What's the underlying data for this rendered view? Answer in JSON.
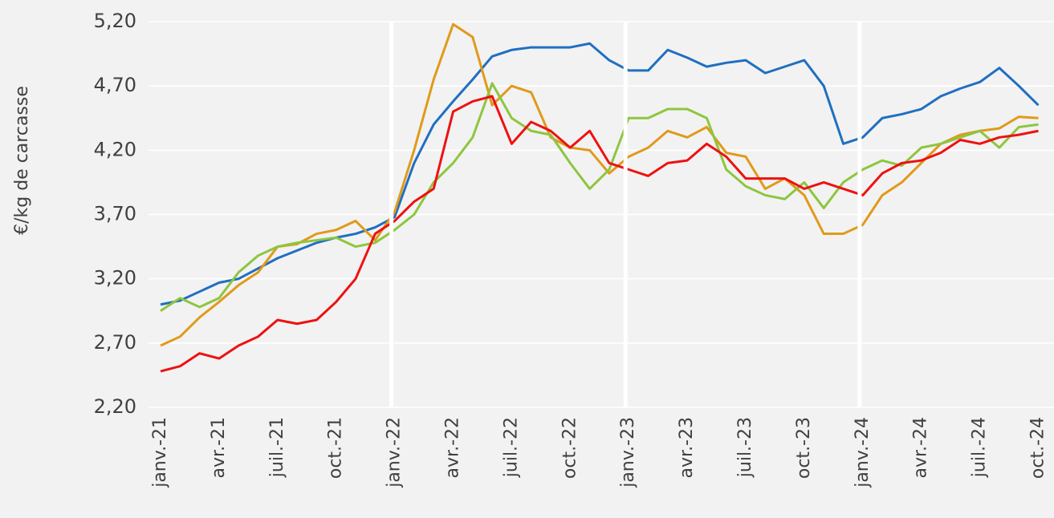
{
  "chart_data": {
    "type": "line",
    "y_label": "€/kg de carcasse",
    "categories": [
      "janv.-21",
      null,
      null,
      "avr.-21",
      null,
      null,
      "juil.-21",
      null,
      null,
      "oct.-21",
      null,
      null,
      "janv.-22",
      null,
      null,
      "avr.-22",
      null,
      null,
      "juil.-22",
      null,
      null,
      "oct.-22",
      null,
      null,
      "janv.-23",
      null,
      null,
      "avr.-23",
      null,
      null,
      "juil.-23",
      null,
      null,
      "oct.-23",
      null,
      null,
      "janv.-24",
      null,
      null,
      "avr.-24",
      null,
      null,
      "juil.-24",
      null,
      null,
      "oct.-24"
    ],
    "series": [
      {
        "color": "#1f6fc0",
        "values": [
          3.0,
          3.03,
          3.1,
          3.17,
          3.2,
          3.28,
          3.36,
          3.42,
          3.48,
          3.52,
          3.55,
          3.6,
          3.68,
          4.1,
          4.4,
          4.58,
          4.75,
          4.93,
          4.98,
          5.0,
          5.0,
          5.0,
          5.03,
          4.9,
          4.82,
          4.82,
          4.98,
          4.92,
          4.85,
          4.88,
          4.9,
          4.8,
          4.85,
          4.9,
          4.7,
          4.25,
          4.3,
          4.45,
          4.48,
          4.52,
          4.62,
          4.68,
          4.73,
          4.84,
          4.7,
          4.55
        ]
      },
      {
        "color": "#e09a1a",
        "values": [
          2.68,
          2.75,
          2.9,
          3.02,
          3.15,
          3.25,
          3.45,
          3.47,
          3.55,
          3.58,
          3.65,
          3.5,
          3.72,
          4.2,
          4.75,
          5.18,
          5.08,
          4.55,
          4.7,
          4.65,
          4.3,
          4.22,
          4.2,
          4.02,
          4.15,
          4.22,
          4.35,
          4.3,
          4.38,
          4.18,
          4.15,
          3.9,
          3.98,
          3.85,
          3.55,
          3.55,
          3.62,
          3.85,
          3.95,
          4.1,
          4.25,
          4.32,
          4.35,
          4.37,
          4.46,
          4.45
        ]
      },
      {
        "color": "#8dc63f",
        "values": [
          2.95,
          3.05,
          2.98,
          3.05,
          3.25,
          3.38,
          3.45,
          3.48,
          3.5,
          3.52,
          3.45,
          3.48,
          3.58,
          3.7,
          3.95,
          4.1,
          4.3,
          4.72,
          4.45,
          4.35,
          4.32,
          4.1,
          3.9,
          4.05,
          4.45,
          4.45,
          4.52,
          4.52,
          4.45,
          4.05,
          3.92,
          3.85,
          3.82,
          3.95,
          3.75,
          3.95,
          4.05,
          4.12,
          4.08,
          4.22,
          4.25,
          4.3,
          4.35,
          4.22,
          4.38,
          4.4
        ]
      },
      {
        "color": "#ee1111",
        "values": [
          2.48,
          2.52,
          2.62,
          2.58,
          2.68,
          2.75,
          2.88,
          2.85,
          2.88,
          3.02,
          3.2,
          3.55,
          3.65,
          3.8,
          3.9,
          4.5,
          4.58,
          4.62,
          4.25,
          4.42,
          4.35,
          4.22,
          4.35,
          4.1,
          4.05,
          4.0,
          4.1,
          4.12,
          4.25,
          4.15,
          3.98,
          3.98,
          3.98,
          3.9,
          3.95,
          3.9,
          3.85,
          4.02,
          4.1,
          4.12,
          4.18,
          4.28,
          4.25,
          4.3,
          4.32,
          4.35
        ]
      }
    ],
    "ylim": [
      2.2,
      5.2
    ],
    "yticks": [
      {
        "value": 2.2,
        "label": "2,20"
      },
      {
        "value": 2.7,
        "label": "2,70"
      },
      {
        "value": 3.2,
        "label": "3,20"
      },
      {
        "value": 3.7,
        "label": "3,70"
      },
      {
        "value": 4.2,
        "label": "4,20"
      },
      {
        "value": 4.7,
        "label": "4,70"
      },
      {
        "value": 5.2,
        "label": "5,20"
      }
    ],
    "grid": true
  }
}
